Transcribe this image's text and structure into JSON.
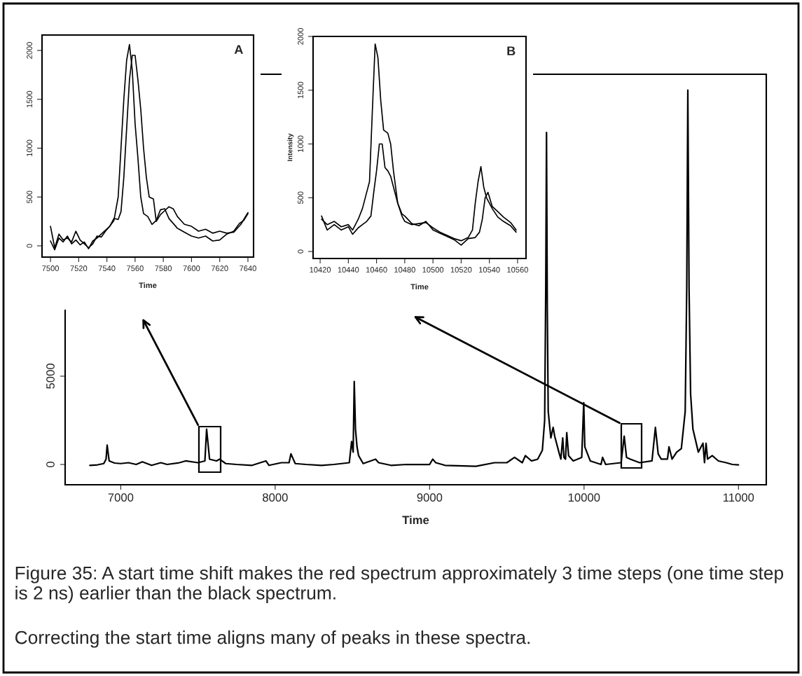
{
  "chart_data": [
    {
      "type": "line",
      "xlabel": "Time",
      "xlim": [
        6640,
        11180
      ],
      "ylim": [
        -1150,
        22100
      ],
      "xticks": [
        7000,
        8000,
        9000,
        10000,
        11000
      ],
      "yticks": [
        0,
        5000
      ],
      "series": [
        {
          "color": "#000000",
          "x": [
            6800,
            6850,
            6890,
            6905,
            6912,
            6925,
            6960,
            7000,
            7050,
            7100,
            7140,
            7200,
            7260,
            7300,
            7380,
            7420,
            7500,
            7545,
            7556,
            7575,
            7620,
            7640,
            7680,
            7750,
            7850,
            7940,
            7960,
            8040,
            8090,
            8102,
            8130,
            8200,
            8300,
            8380,
            8480,
            8495,
            8505,
            8512,
            8520,
            8530,
            8540,
            8570,
            8650,
            8670,
            8750,
            8850,
            9000,
            9020,
            9040,
            9100,
            9300,
            9420,
            9500,
            9550,
            9600,
            9620,
            9660,
            9700,
            9730,
            9745,
            9752,
            9757,
            9762,
            9768,
            9785,
            9800,
            9810,
            9840,
            9850,
            9862,
            9870,
            9880,
            9888,
            9900,
            9930,
            9985,
            9998,
            10005,
            10040,
            10110,
            10120,
            10140,
            10240,
            10260,
            10275,
            10300,
            10360,
            10440,
            10462,
            10480,
            10500,
            10540,
            10550,
            10570,
            10600,
            10630,
            10655,
            10665,
            10672,
            10680,
            10690,
            10705,
            10740,
            10770,
            10780,
            10790,
            10800,
            10830,
            10870,
            10920,
            10960,
            11000
          ],
          "values": [
            -50,
            -20,
            50,
            300,
            1100,
            200,
            80,
            50,
            100,
            0,
            150,
            -50,
            100,
            0,
            100,
            200,
            100,
            200,
            2000,
            300,
            200,
            300,
            50,
            0,
            -50,
            200,
            -50,
            100,
            100,
            600,
            50,
            0,
            -50,
            0,
            100,
            1300,
            700,
            4700,
            2000,
            1000,
            500,
            50,
            300,
            100,
            -50,
            0,
            0,
            300,
            100,
            -50,
            -100,
            100,
            100,
            400,
            100,
            500,
            200,
            300,
            800,
            2500,
            10000,
            18800,
            9000,
            3000,
            1500,
            2100,
            1600,
            600,
            300,
            1500,
            400,
            300,
            1800,
            500,
            200,
            400,
            3500,
            1000,
            200,
            0,
            400,
            0,
            100,
            1600,
            400,
            300,
            100,
            200,
            2100,
            600,
            300,
            300,
            1000,
            300,
            700,
            900,
            3000,
            10000,
            21200,
            10000,
            4000,
            2000,
            700,
            1200,
            100,
            1200,
            300,
            500,
            200,
            100,
            0,
            -20
          ]
        }
      ],
      "annotations": [
        "Figure 35: A start time shift makes the red spectrum approximately 3 time steps (one time step is 2 ns) earlier than the black spectrum.",
        "Correcting the start time aligns many of peaks in these spectra."
      ]
    },
    {
      "type": "line",
      "title": "A",
      "xlabel": "Time",
      "xlim": [
        7494,
        7644
      ],
      "ylim": [
        -115,
        2158
      ],
      "xticks": [
        7500,
        7520,
        7540,
        7560,
        7580,
        7600,
        7620,
        7640
      ],
      "yticks": [
        0,
        500,
        1000,
        1500,
        2000
      ],
      "series": [
        {
          "color": "#000000",
          "x": [
            7500,
            7503,
            7506,
            7509,
            7512,
            7515,
            7518,
            7521,
            7524,
            7527,
            7530,
            7533,
            7536,
            7539,
            7542,
            7545,
            7548,
            7550,
            7552,
            7554,
            7556,
            7558,
            7560,
            7562,
            7564,
            7566,
            7569,
            7572,
            7575,
            7578,
            7581,
            7584,
            7587,
            7590,
            7595,
            7600,
            7605,
            7610,
            7615,
            7620,
            7625,
            7630,
            7634,
            7637,
            7640
          ],
          "values": [
            50,
            -40,
            80,
            40,
            100,
            20,
            60,
            10,
            40,
            -30,
            50,
            80,
            120,
            160,
            200,
            260,
            500,
            1000,
            1500,
            1900,
            2060,
            1800,
            1250,
            900,
            500,
            330,
            300,
            220,
            260,
            370,
            380,
            280,
            230,
            180,
            140,
            100,
            80,
            100,
            50,
            60,
            120,
            150,
            230,
            260,
            330
          ]
        },
        {
          "color": "#000000",
          "x": [
            7500,
            7503,
            7506,
            7509,
            7512,
            7515,
            7518,
            7521,
            7524,
            7527,
            7530,
            7533,
            7536,
            7539,
            7542,
            7545,
            7548,
            7550,
            7552,
            7554,
            7556,
            7558,
            7560,
            7562,
            7564,
            7566,
            7568,
            7570,
            7573,
            7575,
            7578,
            7581,
            7584,
            7587,
            7590,
            7595,
            7600,
            7605,
            7610,
            7615,
            7620,
            7625,
            7630,
            7635,
            7640
          ],
          "values": [
            200,
            -20,
            120,
            60,
            80,
            40,
            150,
            60,
            20,
            -20,
            20,
            100,
            90,
            150,
            200,
            280,
            270,
            350,
            700,
            1200,
            1700,
            1950,
            1950,
            1700,
            1400,
            1000,
            700,
            500,
            480,
            250,
            320,
            360,
            400,
            380,
            300,
            220,
            200,
            150,
            170,
            130,
            150,
            130,
            140,
            220,
            340
          ]
        }
      ]
    },
    {
      "type": "line",
      "title": "B",
      "xlabel": "Time",
      "ylabel": "Intensity",
      "xlim": [
        10415,
        10566
      ],
      "ylim": [
        -65,
        2000
      ],
      "xticks": [
        10420,
        10440,
        10460,
        10480,
        10500,
        10520,
        10540,
        10560
      ],
      "yticks": [
        0,
        500,
        1000,
        1500,
        2000
      ],
      "series": [
        {
          "color": "#000000",
          "x": [
            10421,
            10425,
            10430,
            10435,
            10440,
            10443,
            10447,
            10450,
            10453,
            10455,
            10457,
            10459,
            10461,
            10463,
            10465,
            10468,
            10470,
            10472,
            10475,
            10478,
            10480,
            10485,
            10490,
            10495,
            10500,
            10505,
            10510,
            10515,
            10520,
            10525,
            10528,
            10530,
            10532,
            10534,
            10536,
            10538,
            10542,
            10546,
            10550,
            10555,
            10559
          ],
          "values": [
            300,
            250,
            280,
            230,
            250,
            200,
            300,
            400,
            550,
            650,
            1300,
            1930,
            1800,
            1400,
            1130,
            1100,
            1000,
            750,
            450,
            330,
            280,
            250,
            260,
            270,
            220,
            180,
            150,
            120,
            100,
            130,
            200,
            450,
            650,
            790,
            600,
            500,
            400,
            320,
            280,
            240,
            180
          ]
        },
        {
          "color": "#000000",
          "x": [
            10421,
            10425,
            10430,
            10435,
            10440,
            10443,
            10447,
            10450,
            10453,
            10456,
            10458,
            10460,
            10462,
            10464,
            10466,
            10468,
            10470,
            10472,
            10475,
            10478,
            10480,
            10485,
            10490,
            10495,
            10500,
            10505,
            10510,
            10515,
            10520,
            10525,
            10530,
            10533,
            10535,
            10537,
            10539,
            10542,
            10546,
            10550,
            10555,
            10559
          ],
          "values": [
            330,
            200,
            250,
            200,
            230,
            160,
            220,
            250,
            280,
            330,
            550,
            750,
            1000,
            1000,
            780,
            750,
            700,
            600,
            450,
            350,
            330,
            260,
            240,
            280,
            200,
            170,
            140,
            110,
            60,
            120,
            130,
            180,
            300,
            500,
            550,
            420,
            370,
            320,
            270,
            200
          ]
        }
      ]
    }
  ]
}
